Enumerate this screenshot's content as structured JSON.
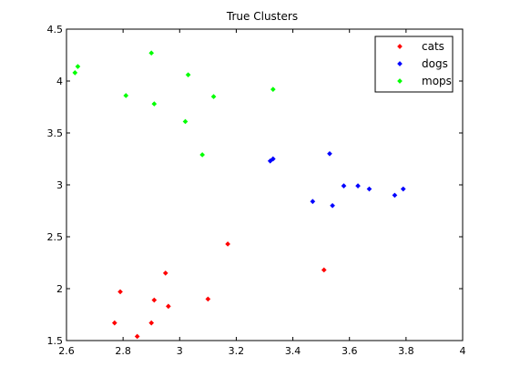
{
  "chart_data": {
    "type": "scatter",
    "title": "True Clusters",
    "xlabel": "",
    "ylabel": "",
    "xlim": [
      2.6,
      4.0
    ],
    "ylim": [
      1.5,
      4.5
    ],
    "xticks": [
      "2.6",
      "2.8",
      "3",
      "3.2",
      "3.4",
      "3.6",
      "3.8",
      "4"
    ],
    "yticks": [
      "1.5",
      "2",
      "2.5",
      "3",
      "3.5",
      "4",
      "4.5"
    ],
    "grid": false,
    "legend_position": "top-right",
    "series": [
      {
        "name": "cats",
        "color": "#ff0000",
        "points": [
          [
            2.77,
            1.67
          ],
          [
            2.85,
            1.54
          ],
          [
            2.79,
            1.97
          ],
          [
            2.9,
            1.67
          ],
          [
            2.91,
            1.89
          ],
          [
            2.95,
            2.15
          ],
          [
            2.96,
            1.83
          ],
          [
            3.1,
            1.9
          ],
          [
            3.17,
            2.43
          ],
          [
            3.51,
            2.18
          ]
        ]
      },
      {
        "name": "dogs",
        "color": "#0000ff",
        "points": [
          [
            3.32,
            3.23
          ],
          [
            3.33,
            3.25
          ],
          [
            3.47,
            2.84
          ],
          [
            3.53,
            3.3
          ],
          [
            3.54,
            2.8
          ],
          [
            3.58,
            2.99
          ],
          [
            3.63,
            2.99
          ],
          [
            3.67,
            2.96
          ],
          [
            3.76,
            2.9
          ],
          [
            3.79,
            2.96
          ]
        ]
      },
      {
        "name": "mops",
        "color": "#00ff00",
        "points": [
          [
            2.63,
            4.08
          ],
          [
            2.64,
            4.14
          ],
          [
            2.81,
            3.86
          ],
          [
            2.9,
            4.27
          ],
          [
            2.91,
            3.78
          ],
          [
            3.02,
            3.61
          ],
          [
            3.03,
            4.06
          ],
          [
            3.08,
            3.29
          ],
          [
            3.12,
            3.85
          ],
          [
            3.33,
            3.92
          ]
        ]
      }
    ]
  }
}
